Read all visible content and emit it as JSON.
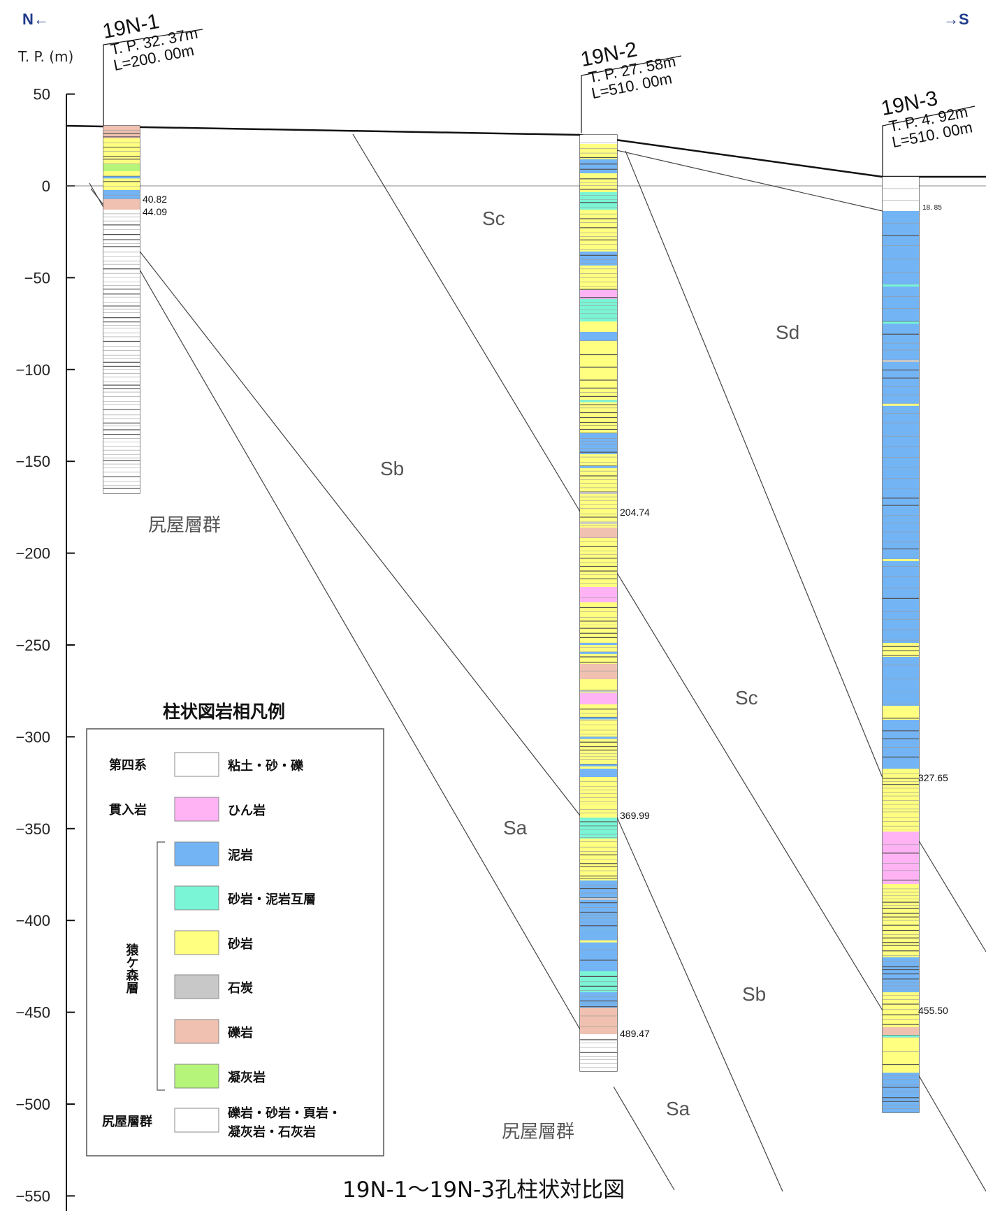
{
  "header": {
    "north": "N←",
    "south": "→S",
    "unit": "T. P. (m)"
  },
  "axis": {
    "ticks": [
      50,
      0,
      -50,
      -100,
      -150,
      -200,
      -250,
      -300,
      -350,
      -400,
      -450,
      -500,
      -550
    ]
  },
  "boreholes": [
    {
      "name": "19N-1",
      "tp": "T. P. 32. 37m",
      "length": "L=200. 00m",
      "depths": [
        "40.82",
        "44.09"
      ]
    },
    {
      "name": "19N-2",
      "tp": "T. P. 27. 58m",
      "length": "L=510. 00m",
      "depths": [
        "204.74",
        "369.99",
        "489.47"
      ]
    },
    {
      "name": "19N-3",
      "tp": "T. P. 4. 92m",
      "length": "L=510. 00m",
      "depths": [
        "18. 85",
        "327.65",
        "455.50"
      ]
    }
  ],
  "zones": [
    "Sc",
    "Sd",
    "Sb",
    "Sc",
    "Sa",
    "Sb",
    "Sa"
  ],
  "groups": [
    "尻屋層群",
    "尻屋層群"
  ],
  "legend": {
    "title": "柱状図岩相凡例",
    "left_labels": [
      "第四系",
      "貫入岩",
      "猿ケ森層",
      "尻屋層群"
    ],
    "items": [
      {
        "label": "粘土・砂・礫",
        "color": "#ffffff"
      },
      {
        "label": "ひん岩",
        "color": "#ffb3f5"
      },
      {
        "label": "泥岩",
        "color": "#73b4f5"
      },
      {
        "label": "砂岩・泥岩互層",
        "color": "#7af5d6"
      },
      {
        "label": "砂岩",
        "color": "#ffff80"
      },
      {
        "label": "石炭",
        "color": "#c8c8c8"
      },
      {
        "label": "礫岩",
        "color": "#f0c0b0"
      },
      {
        "label": "凝灰岩",
        "color": "#b5f57a"
      },
      {
        "label": "礫岩・砂岩・頁岩・",
        "label2": "凝灰岩・石灰岩",
        "color": "#ffffff"
      }
    ]
  },
  "title": "19N-1～19N-3孔柱状対比図"
}
